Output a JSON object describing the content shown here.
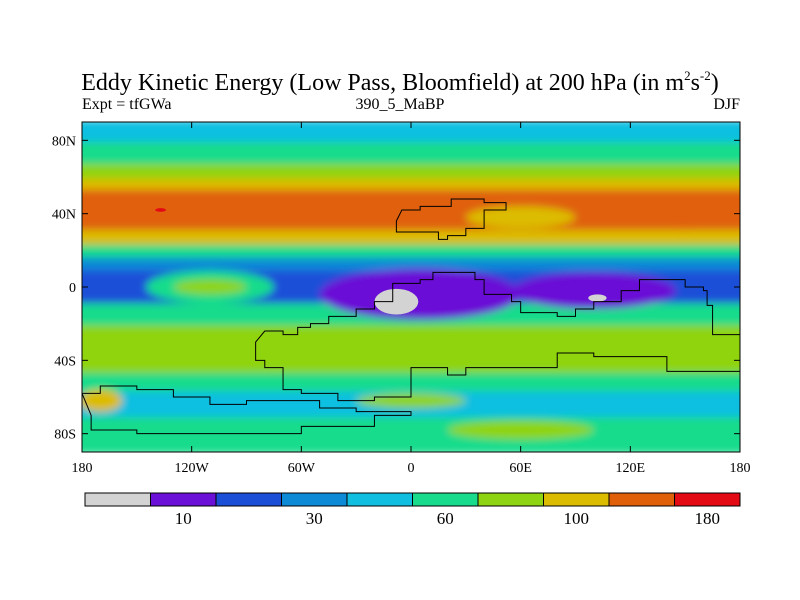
{
  "chart_data": {
    "type": "heatmap",
    "title": {
      "main": "Eddy Kinetic Energy (Low Pass, Bloomfield) at 200 hPa (in m",
      "sup1": "2",
      "mid": "s",
      "sup2": "-2",
      "close": ")"
    },
    "subtitle_left": "Expt = tfGWa",
    "subtitle_center": "390_5_MaBP",
    "subtitle_right": "DJF",
    "x_axis": {
      "range": [
        -180,
        180
      ],
      "ticks": [
        {
          "value": -180,
          "label": "180"
        },
        {
          "value": -120,
          "label": "120W"
        },
        {
          "value": -60,
          "label": "60W"
        },
        {
          "value": 0,
          "label": "0"
        },
        {
          "value": 60,
          "label": "60E"
        },
        {
          "value": 120,
          "label": "120E"
        },
        {
          "value": 180,
          "label": "180"
        }
      ]
    },
    "y_axis": {
      "range": [
        -90,
        90
      ],
      "ticks": [
        {
          "value": 80,
          "label": "80N"
        },
        {
          "value": 40,
          "label": "40N"
        },
        {
          "value": 0,
          "label": "0"
        },
        {
          "value": -40,
          "label": "40S"
        },
        {
          "value": -80,
          "label": "80S"
        }
      ]
    },
    "colorbar": {
      "bins": [
        "#d3d3d3",
        "#6b10d6",
        "#1b4fd8",
        "#0d8ad6",
        "#10bfe0",
        "#18dc8c",
        "#8fd410",
        "#dcbc00",
        "#e0600a",
        "#e30a14"
      ],
      "labels": [
        {
          "index": 1,
          "label": "10"
        },
        {
          "index": 3,
          "label": "30"
        },
        {
          "index": 5,
          "label": "60"
        },
        {
          "index": 7,
          "label": "100"
        },
        {
          "index": 9,
          "label": "180"
        }
      ]
    },
    "latitude_bands": [
      {
        "lat_top": 90,
        "lat_bottom": 78,
        "level": 4
      },
      {
        "lat_top": 78,
        "lat_bottom": 66,
        "level": 5
      },
      {
        "lat_top": 66,
        "lat_bottom": 58,
        "level": 6
      },
      {
        "lat_top": 58,
        "lat_bottom": 52,
        "level": 7
      },
      {
        "lat_top": 52,
        "lat_bottom": 30,
        "level": 8
      },
      {
        "lat_top": 30,
        "lat_bottom": 22,
        "level": 7
      },
      {
        "lat_top": 22,
        "lat_bottom": 15,
        "level": 5
      },
      {
        "lat_top": 15,
        "lat_bottom": 8,
        "level": 3
      },
      {
        "lat_top": 8,
        "lat_bottom": -10,
        "level": 2
      },
      {
        "lat_top": -10,
        "lat_bottom": -22,
        "level": 5
      },
      {
        "lat_top": -22,
        "lat_bottom": -48,
        "level": 6
      },
      {
        "lat_top": -48,
        "lat_bottom": -58,
        "level": 5
      },
      {
        "lat_top": -58,
        "lat_bottom": -72,
        "level": 4
      },
      {
        "lat_top": -72,
        "lat_bottom": -90,
        "level": 5
      }
    ],
    "features": [
      {
        "lon": -110,
        "lat": 0,
        "rlon": 35,
        "rlat": 9,
        "level": 5
      },
      {
        "lon": -110,
        "lat": 0,
        "rlon": 20,
        "rlat": 4,
        "level": 6
      },
      {
        "lon": 5,
        "lat": -4,
        "rlon": 55,
        "rlat": 14,
        "level": 1
      },
      {
        "lon": 100,
        "lat": -2,
        "rlon": 45,
        "rlat": 10,
        "level": 1
      },
      {
        "lon": -8,
        "lat": -8,
        "rlon": 12,
        "rlat": 7,
        "level": 0
      },
      {
        "lon": 102,
        "lat": -6,
        "rlon": 5,
        "rlat": 2,
        "level": 0
      },
      {
        "lon": 150,
        "lat": 40,
        "rlon": 35,
        "rlat": 9,
        "level": 8
      },
      {
        "lon": 60,
        "lat": 38,
        "rlon": 30,
        "rlat": 6,
        "level": 7
      },
      {
        "lon": -137,
        "lat": 42,
        "rlon": 3,
        "rlat": 1,
        "level": 9
      },
      {
        "lon": 0,
        "lat": -62,
        "rlon": 30,
        "rlat": 4,
        "level": 6
      },
      {
        "lon": -170,
        "lat": -62,
        "rlon": 12,
        "rlat": 6,
        "level": 7
      },
      {
        "lon": 60,
        "lat": -78,
        "rlon": 40,
        "rlat": 5,
        "level": 6
      }
    ],
    "continents": [
      {
        "name": "north-continent",
        "points": [
          [
            -5,
            42
          ],
          [
            5,
            44
          ],
          [
            18,
            44
          ],
          [
            22,
            48
          ],
          [
            40,
            46
          ],
          [
            50,
            46
          ],
          [
            52,
            42
          ],
          [
            40,
            40
          ],
          [
            40,
            32
          ],
          [
            30,
            28
          ],
          [
            20,
            26
          ],
          [
            15,
            30
          ],
          [
            -5,
            30
          ],
          [
            -8,
            36
          ]
        ]
      },
      {
        "name": "south-continent",
        "points": [
          [
            -80,
            -24
          ],
          [
            -70,
            -26
          ],
          [
            -62,
            -22
          ],
          [
            -55,
            -20
          ],
          [
            -45,
            -16
          ],
          [
            -30,
            -12
          ],
          [
            -20,
            -8
          ],
          [
            -10,
            2
          ],
          [
            5,
            4
          ],
          [
            12,
            8
          ],
          [
            28,
            8
          ],
          [
            35,
            4
          ],
          [
            40,
            -4
          ],
          [
            55,
            -8
          ],
          [
            60,
            -14
          ],
          [
            80,
            -16
          ],
          [
            90,
            -12
          ],
          [
            100,
            -8
          ],
          [
            115,
            -2
          ],
          [
            125,
            4
          ],
          [
            135,
            4
          ],
          [
            150,
            0
          ],
          [
            160,
            -2
          ],
          [
            162,
            -10
          ],
          [
            165,
            -26
          ],
          [
            180,
            -40
          ],
          [
            180,
            -46
          ],
          [
            140,
            -38
          ],
          [
            100,
            -36
          ],
          [
            80,
            -44
          ],
          [
            60,
            -44
          ],
          [
            40,
            -44
          ],
          [
            30,
            -48
          ],
          [
            20,
            -44
          ],
          [
            0,
            -60
          ],
          [
            -20,
            -62
          ],
          [
            -40,
            -58
          ],
          [
            -60,
            -56
          ],
          [
            -70,
            -44
          ],
          [
            -80,
            -40
          ],
          [
            -85,
            -30
          ]
        ]
      },
      {
        "name": "southern-landmass",
        "points": [
          [
            -180,
            -58
          ],
          [
            -170,
            -54
          ],
          [
            -150,
            -56
          ],
          [
            -130,
            -60
          ],
          [
            -110,
            -64
          ],
          [
            -90,
            -62
          ],
          [
            -70,
            -62
          ],
          [
            -50,
            -66
          ],
          [
            -30,
            -68
          ],
          [
            0,
            -70
          ],
          [
            -20,
            -76
          ],
          [
            -60,
            -80
          ],
          [
            -110,
            -80
          ],
          [
            -150,
            -78
          ],
          [
            -175,
            -70
          ]
        ]
      }
    ]
  }
}
